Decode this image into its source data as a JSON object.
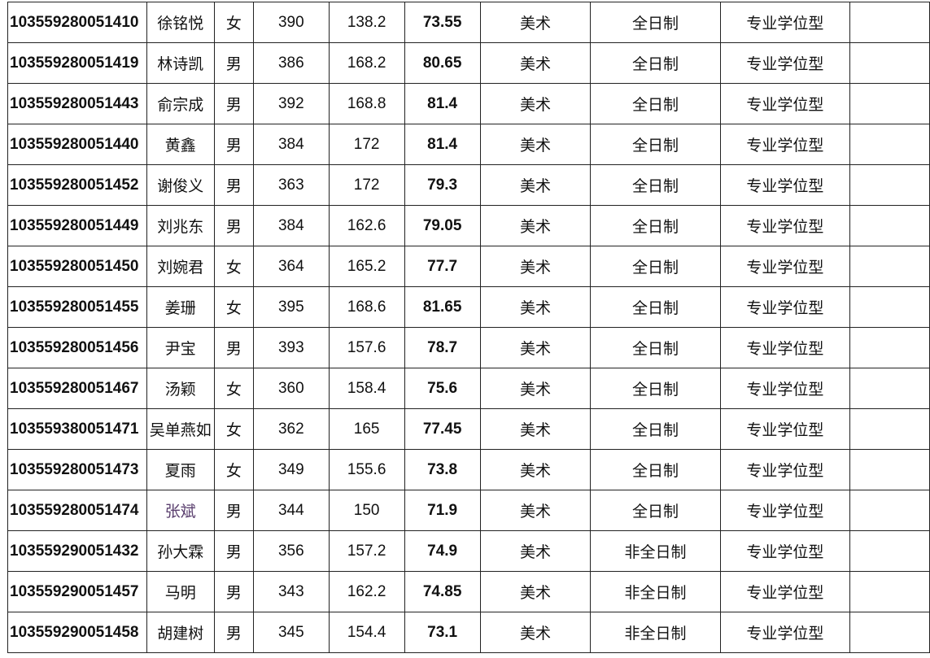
{
  "rows": [
    {
      "id": "103559280051410",
      "name": "徐铭悦",
      "gender": "女",
      "initial": "390",
      "retest": "138.2",
      "total": "73.55",
      "major": "美术",
      "mode": "全日制",
      "type": "专业学位型",
      "note": ""
    },
    {
      "id": "103559280051419",
      "name": "林诗凯",
      "gender": "男",
      "initial": "386",
      "retest": "168.2",
      "total": "80.65",
      "major": "美术",
      "mode": "全日制",
      "type": "专业学位型",
      "note": ""
    },
    {
      "id": "103559280051443",
      "name": "俞宗成",
      "gender": "男",
      "initial": "392",
      "retest": "168.8",
      "total": "81.4",
      "major": "美术",
      "mode": "全日制",
      "type": "专业学位型",
      "note": ""
    },
    {
      "id": "103559280051440",
      "name": "黄鑫",
      "gender": "男",
      "initial": "384",
      "retest": "172",
      "total": "81.4",
      "major": "美术",
      "mode": "全日制",
      "type": "专业学位型",
      "note": ""
    },
    {
      "id": "103559280051452",
      "name": "谢俊义",
      "gender": "男",
      "initial": "363",
      "retest": "172",
      "total": "79.3",
      "major": "美术",
      "mode": "全日制",
      "type": "专业学位型",
      "note": ""
    },
    {
      "id": "103559280051449",
      "name": "刘兆东",
      "gender": "男",
      "initial": "384",
      "retest": "162.6",
      "total": "79.05",
      "major": "美术",
      "mode": "全日制",
      "type": "专业学位型",
      "note": ""
    },
    {
      "id": "103559280051450",
      "name": "刘婉君",
      "gender": "女",
      "initial": "364",
      "retest": "165.2",
      "total": "77.7",
      "major": "美术",
      "mode": "全日制",
      "type": "专业学位型",
      "note": ""
    },
    {
      "id": "103559280051455",
      "name": "姜珊",
      "gender": "女",
      "initial": "395",
      "retest": "168.6",
      "total": "81.65",
      "major": "美术",
      "mode": "全日制",
      "type": "专业学位型",
      "note": ""
    },
    {
      "id": "103559280051456",
      "name": "尹宝",
      "gender": "男",
      "initial": "393",
      "retest": "157.6",
      "total": "78.7",
      "major": "美术",
      "mode": "全日制",
      "type": "专业学位型",
      "note": ""
    },
    {
      "id": "103559280051467",
      "name": "汤颖",
      "gender": "女",
      "initial": "360",
      "retest": "158.4",
      "total": "75.6",
      "major": "美术",
      "mode": "全日制",
      "type": "专业学位型",
      "note": ""
    },
    {
      "id": "103559380051471",
      "name": "吴单燕如",
      "gender": "女",
      "initial": "362",
      "retest": "165",
      "total": "77.45",
      "major": "美术",
      "mode": "全日制",
      "type": "专业学位型",
      "note": ""
    },
    {
      "id": "103559280051473",
      "name": "夏雨",
      "gender": "女",
      "initial": "349",
      "retest": "155.6",
      "total": "73.8",
      "major": "美术",
      "mode": "全日制",
      "type": "专业学位型",
      "note": ""
    },
    {
      "id": "103559280051474",
      "name": "张斌",
      "gender": "男",
      "initial": "344",
      "retest": "150",
      "total": "71.9",
      "major": "美术",
      "mode": "全日制",
      "type": "专业学位型",
      "note": "",
      "name_color": "#5a3f6e"
    },
    {
      "id": "103559290051432",
      "name": "孙大霖",
      "gender": "男",
      "initial": "356",
      "retest": "157.2",
      "total": "74.9",
      "major": "美术",
      "mode": "非全日制",
      "type": "专业学位型",
      "note": ""
    },
    {
      "id": "103559290051457",
      "name": "马明",
      "gender": "男",
      "initial": "343",
      "retest": "162.2",
      "total": "74.85",
      "major": "美术",
      "mode": "非全日制",
      "type": "专业学位型",
      "note": ""
    },
    {
      "id": "103559290051458",
      "name": "胡建树",
      "gender": "男",
      "initial": "345",
      "retest": "154.4",
      "total": "73.1",
      "major": "美术",
      "mode": "非全日制",
      "type": "专业学位型",
      "note": ""
    }
  ]
}
